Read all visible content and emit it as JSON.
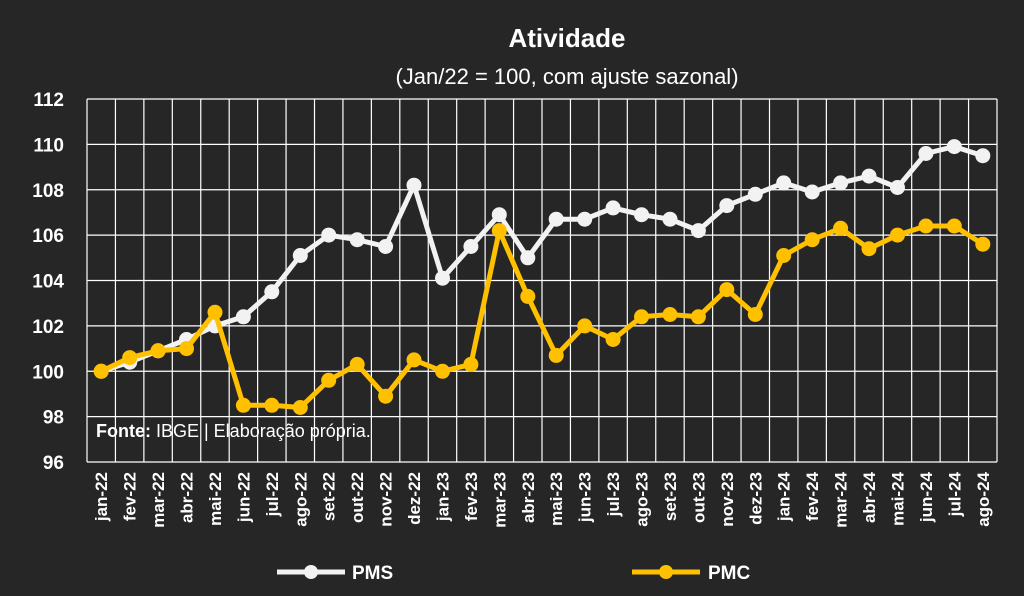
{
  "chart_data": {
    "type": "line",
    "title": "Atividade",
    "subtitle": "(Jan/22 = 100, com ajuste sazonal)",
    "xlabel": "",
    "ylabel": "",
    "ylim": [
      96,
      112
    ],
    "yticks": [
      96,
      98,
      100,
      102,
      104,
      106,
      108,
      110,
      112
    ],
    "grid": true,
    "legend": "bottom",
    "categories": [
      "jan-22",
      "fev-22",
      "mar-22",
      "abr-22",
      "mai-22",
      "jun-22",
      "jul-22",
      "ago-22",
      "set-22",
      "out-22",
      "nov-22",
      "dez-22",
      "jan-23",
      "fev-23",
      "mar-23",
      "abr-23",
      "mai-23",
      "jun-23",
      "jul-23",
      "ago-23",
      "set-23",
      "out-23",
      "nov-23",
      "dez-23",
      "jan-24",
      "fev-24",
      "mar-24",
      "abr-24",
      "mai-24",
      "jun-24",
      "jul-24",
      "ago-24"
    ],
    "series": [
      {
        "name": "PMS",
        "color": "#f2f2f2",
        "values": [
          100.0,
          100.4,
          100.9,
          101.4,
          102.0,
          102.4,
          103.5,
          105.1,
          106.0,
          105.8,
          105.5,
          108.2,
          104.1,
          105.5,
          106.9,
          105.0,
          106.7,
          106.7,
          107.2,
          106.9,
          106.7,
          106.2,
          107.3,
          107.8,
          108.3,
          107.9,
          108.3,
          108.6,
          108.1,
          109.6,
          109.9,
          109.5
        ]
      },
      {
        "name": "PMC",
        "color": "#ffc000",
        "values": [
          100.0,
          100.6,
          100.9,
          101.0,
          102.6,
          98.5,
          98.5,
          98.4,
          99.6,
          100.3,
          98.9,
          100.5,
          100.0,
          100.3,
          106.2,
          103.3,
          100.7,
          102.0,
          101.4,
          102.4,
          102.5,
          102.4,
          103.6,
          102.5,
          105.1,
          105.8,
          106.3,
          105.4,
          106.0,
          106.4,
          106.4,
          105.6
        ]
      }
    ],
    "annotation": {
      "label": "Fonte:",
      "text": " IBGE | Elaboração própria."
    }
  }
}
